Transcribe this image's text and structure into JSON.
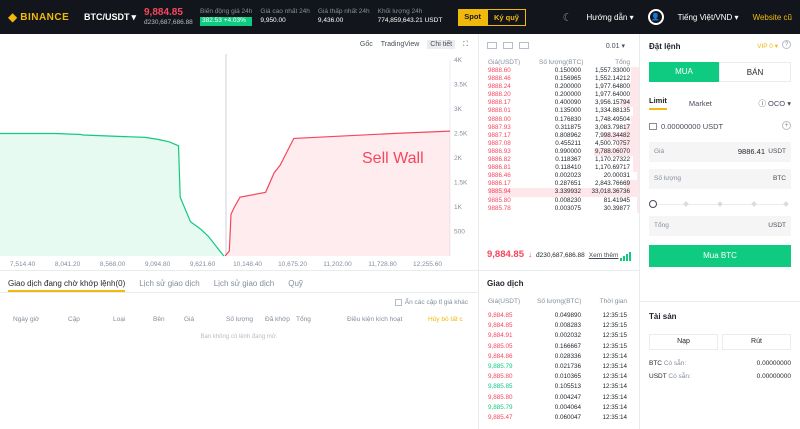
{
  "header": {
    "logo_glyph": "◆",
    "logo_text": "BINANCE",
    "pair": "BTC/USDT",
    "pair_caret": "▾",
    "last_price": "9,884.85",
    "last_price_usd": "đ230,687,686.88",
    "stats": [
      {
        "label": "Biến động giá 24h",
        "value": "382.53 +4.03%"
      },
      {
        "label": "Giá cao nhất 24h",
        "value": "9,950.00"
      },
      {
        "label": "Giá thấp nhất 24h",
        "value": "9,436.00"
      },
      {
        "label": "Khối lượng 24h",
        "value": "774,859,643.21 USDT"
      }
    ],
    "mode_spot": "Spot",
    "mode_kyquy": "Ký quỹ",
    "guide": "Hướng dẫn ▾",
    "language": "Tiếng Việt/VND ▾",
    "website": "Website cũ",
    "theme_icon": "☾",
    "user_icon": "👤"
  },
  "chart": {
    "tabs": [
      "Gốc",
      "TradingView",
      "Chi tiết"
    ],
    "expand_icon": "⛶",
    "annotation": "Sell Wall",
    "chart_data": {
      "type": "area",
      "title": "",
      "x_ticks": [
        "7,514.40",
        "8,041.20",
        "8,568.00",
        "9,094.80",
        "9,621.60",
        "10,148.40",
        "10,675.20",
        "11,202.00",
        "11,728.80",
        "12,255.60"
      ],
      "y_ticks": [
        "4K",
        "3.5K",
        "3K",
        "2.5K",
        "2K",
        "1.5K",
        "1K",
        "500"
      ],
      "xlim": [
        7250,
        12519
      ],
      "ylim": [
        0,
        4000
      ],
      "series": [
        {
          "name": "bids",
          "color": "#0ecb81",
          "x": [
            7250,
            7900,
            8200,
            8220,
            8950,
            9100,
            9230,
            9340,
            9360,
            9480,
            9600,
            9690,
            9870
          ],
          "y": [
            2500,
            2500,
            2480,
            2470,
            2420,
            2380,
            2330,
            2250,
            1200,
            700,
            550,
            400,
            0
          ]
        },
        {
          "name": "asks",
          "color": "#f6465d",
          "x": [
            9885,
            9935,
            9955,
            9995,
            10060,
            10360,
            10460,
            10530,
            10690,
            11850,
            12519
          ],
          "y": [
            0,
            100,
            850,
            1000,
            1200,
            1300,
            1700,
            1850,
            2400,
            2500,
            2550
          ]
        }
      ]
    }
  },
  "orders": {
    "tabs": [
      "Giao dịch đang chờ khớp lệnh(0)",
      "Lịch sử giao dịch",
      "Lịch sử giao dịch",
      "Quỹ"
    ],
    "hide_label": "Ẩn các cặp tỉ giá khác",
    "columns": [
      "Ngày giờ",
      "Cặp",
      "Loại",
      "Bên",
      "Giá",
      "Số lượng",
      "Đã khớp",
      "Tổng",
      "Điều kiện kích hoạt"
    ],
    "cancel_all": "Hủy bỏ tất c",
    "empty": "Ban không có lệnh đang mở."
  },
  "book": {
    "precision": "0.01 ▾",
    "columns": [
      "Giá(USDT)",
      "Số lượng(BTC)",
      "Tổng"
    ],
    "asks": [
      {
        "p": "9888.60",
        "a": "0.150000",
        "t": "1,557.33000",
        "d": 0.05
      },
      {
        "p": "9888.46",
        "a": "0.156965",
        "t": "1,552.14212",
        "d": 0.05
      },
      {
        "p": "9888.24",
        "a": "0.200000",
        "t": "1,977.64800",
        "d": 0.06
      },
      {
        "p": "9888.20",
        "a": "0.200000",
        "t": "1,977.64000",
        "d": 0.06
      },
      {
        "p": "9888.17",
        "a": "0.400090",
        "t": "3,956.15794",
        "d": 0.12
      },
      {
        "p": "9888.01",
        "a": "0.135000",
        "t": "1,334.88135",
        "d": 0.04
      },
      {
        "p": "9888.00",
        "a": "0.176830",
        "t": "1,748.49504",
        "d": 0.05
      },
      {
        "p": "9887.93",
        "a": "0.311875",
        "t": "3,083.79817",
        "d": 0.09
      },
      {
        "p": "9887.17",
        "a": "0.808962",
        "t": "7,998.34482",
        "d": 0.24
      },
      {
        "p": "9887.08",
        "a": "0.455211",
        "t": "4,500.70757",
        "d": 0.14
      },
      {
        "p": "9886.93",
        "a": "0.990000",
        "t": "9,788.06070",
        "d": 0.3
      },
      {
        "p": "9886.82",
        "a": "0.118367",
        "t": "1,170.27322",
        "d": 0.04
      },
      {
        "p": "9886.81",
        "a": "0.118410",
        "t": "1,170.69717",
        "d": 0.04
      },
      {
        "p": "9886.46",
        "a": "0.002023",
        "t": "20.00031",
        "d": 0.01
      },
      {
        "p": "9886.17",
        "a": "0.287651",
        "t": "2,843.76669",
        "d": 0.09
      },
      {
        "p": "9885.94",
        "a": "3.339932",
        "t": "33,018.36736",
        "d": 1.0
      },
      {
        "p": "9885.80",
        "a": "0.008230",
        "t": "81.41945",
        "d": 0.01
      },
      {
        "p": "9885.78",
        "a": "0.003075",
        "t": "30.39877",
        "d": 0.01
      }
    ],
    "last_price": "9,884.85",
    "last_arrow": "↓",
    "last_price_fiat": "đ230,687,686.88",
    "more": "Xem thêm"
  },
  "trades": {
    "title": "Giao dịch",
    "columns": [
      "Giá(USDT)",
      "Số lượng(BTC)",
      "Thời gian"
    ],
    "rows": [
      {
        "p": "9,884.85",
        "a": "0.049890",
        "t": "12:35:15",
        "side": "sell"
      },
      {
        "p": "9,884.85",
        "a": "0.008283",
        "t": "12:35:15",
        "side": "sell"
      },
      {
        "p": "9,884.91",
        "a": "0.002032",
        "t": "12:35:15",
        "side": "sell"
      },
      {
        "p": "9,885.05",
        "a": "0.166667",
        "t": "12:35:15",
        "side": "sell"
      },
      {
        "p": "9,884.86",
        "a": "0.028336",
        "t": "12:35:14",
        "side": "sell"
      },
      {
        "p": "9,885.79",
        "a": "0.021736",
        "t": "12:35:14",
        "side": "buy"
      },
      {
        "p": "9,885.80",
        "a": "0.010365",
        "t": "12:35:14",
        "side": "sell"
      },
      {
        "p": "9,885.85",
        "a": "0.105513",
        "t": "12:35:14",
        "side": "buy"
      },
      {
        "p": "9,885.80",
        "a": "0.004247",
        "t": "12:35:14",
        "side": "sell"
      },
      {
        "p": "9,885.79",
        "a": "0.004064",
        "t": "12:35:14",
        "side": "buy"
      },
      {
        "p": "9,885.47",
        "a": "0.060047",
        "t": "12:35:14",
        "side": "sell"
      }
    ]
  },
  "order_form": {
    "title": "Đặt lệnh",
    "vip": "VIP 0 ▾",
    "help": "?",
    "buy_tab": "MUA",
    "sell_tab": "BÁN",
    "type_limit": "Limit",
    "type_market": "Market",
    "type_oco": "ⓘ OCO ▾",
    "available": "0.00000000 USDT",
    "add": "+",
    "price_label": "Giá",
    "price_value": "9886.41",
    "price_unit": "USDT",
    "qty_label": "Số lượng",
    "qty_unit": "BTC",
    "total_label": "Tổng",
    "total_unit": "USDT",
    "slider_percent": 0,
    "submit": "Mua BTC"
  },
  "assets": {
    "title": "Tài sản",
    "deposit": "Nạp",
    "withdraw": "Rút",
    "rows": [
      {
        "coin": "BTC",
        "label": "Có sẵn:",
        "value": "0.00000000"
      },
      {
        "coin": "USDT",
        "label": "Có sẵn:",
        "value": "0.00000000"
      }
    ]
  },
  "colors": {
    "buy": "#0ecb81",
    "sell": "#f6465d",
    "accent": "#f0b90b",
    "header_bg": "#12161c"
  }
}
